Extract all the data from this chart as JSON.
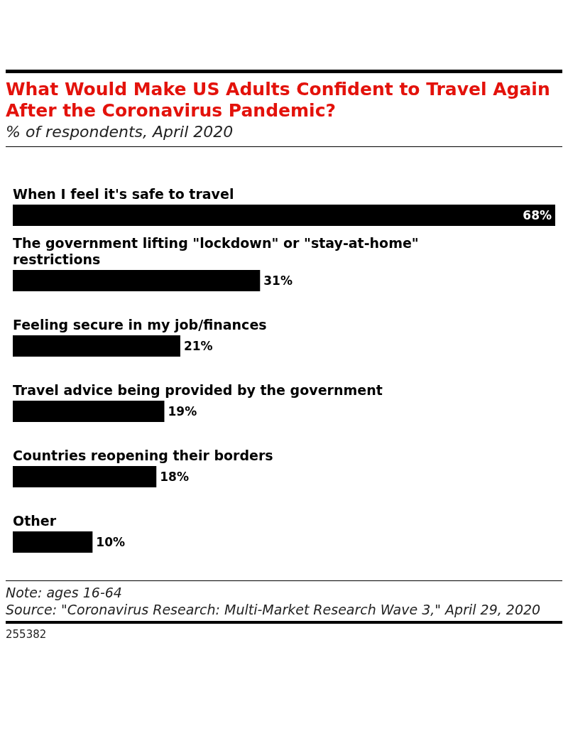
{
  "chart_data": {
    "type": "bar",
    "orientation": "horizontal",
    "title": "What Would Make US Adults Confident to Travel Again After the Coronavirus Pandemic?",
    "subtitle": "% of respondents, April 2020",
    "categories": [
      "When I feel it's safe to travel",
      "The government lifting \"lockdown\" or \"stay-at-home\" restrictions",
      "Feeling secure in my job/finances",
      "Travel advice being provided by the government",
      "Countries reopening their borders",
      "Other"
    ],
    "values": [
      68,
      31,
      21,
      19,
      18,
      10
    ],
    "value_labels": [
      "68%",
      "31%",
      "21%",
      "19%",
      "18%",
      "10%"
    ],
    "color": "#000000",
    "annotations": [
      "Note: ages 16-64",
      "Source: \"Coronavirus Research: Multi-Market Research Wave 3,\" April 29, 2020",
      "255382"
    ]
  }
}
